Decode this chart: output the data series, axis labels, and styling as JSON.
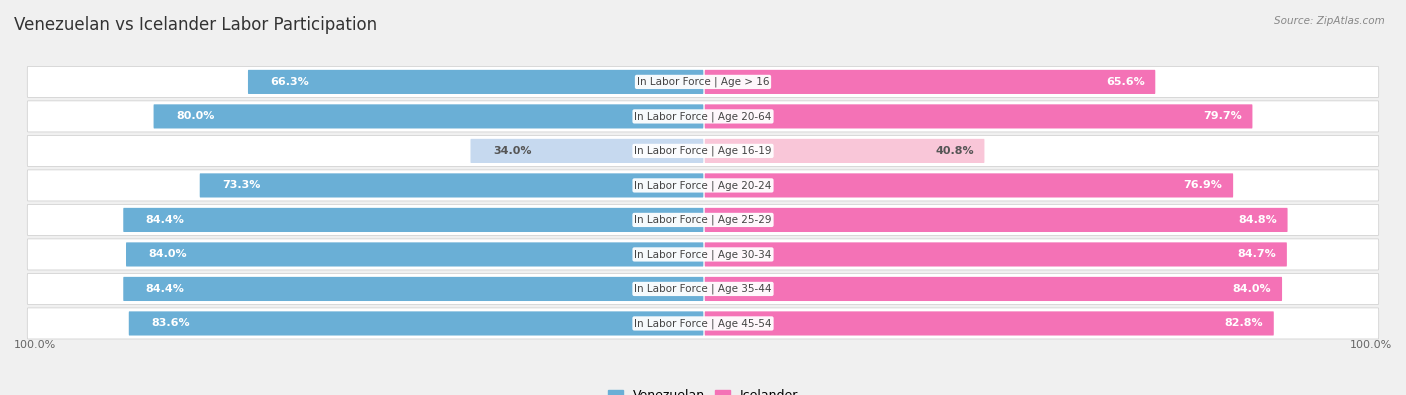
{
  "title": "Venezuelan vs Icelander Labor Participation",
  "source": "Source: ZipAtlas.com",
  "categories": [
    "In Labor Force | Age > 16",
    "In Labor Force | Age 20-64",
    "In Labor Force | Age 16-19",
    "In Labor Force | Age 20-24",
    "In Labor Force | Age 25-29",
    "In Labor Force | Age 30-34",
    "In Labor Force | Age 35-44",
    "In Labor Force | Age 45-54"
  ],
  "venezuelan_values": [
    66.3,
    80.0,
    34.0,
    73.3,
    84.4,
    84.0,
    84.4,
    83.6
  ],
  "icelander_values": [
    65.6,
    79.7,
    40.8,
    76.9,
    84.8,
    84.7,
    84.0,
    82.8
  ],
  "venezuelan_color": "#6aafd6",
  "venezuelan_color_light": "#c6d9ef",
  "icelander_color": "#f472b6",
  "icelander_color_light": "#f9c6d8",
  "background_color": "#f0f0f0",
  "row_bg_light": "#f7f7f7",
  "row_bg_dark": "#ebebeb",
  "title_fontsize": 12,
  "value_fontsize": 8,
  "label_fontsize": 7.5,
  "legend_fontsize": 9,
  "max_val": 100.0
}
